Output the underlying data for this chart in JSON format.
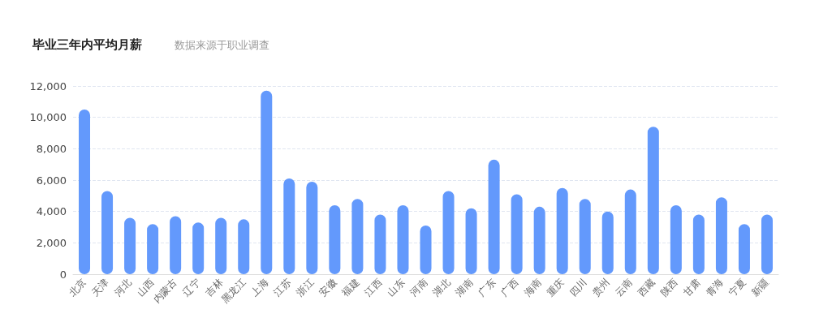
{
  "chart_data": {
    "type": "bar",
    "title": "毕业三年内平均月薪",
    "subtitle": "数据来源于职业调查",
    "categories": [
      "北京",
      "天津",
      "河北",
      "山西",
      "内蒙古",
      "辽宁",
      "吉林",
      "黑龙江",
      "上海",
      "江苏",
      "浙江",
      "安徽",
      "福建",
      "江西",
      "山东",
      "河南",
      "湖北",
      "湖南",
      "广东",
      "广西",
      "海南",
      "重庆",
      "四川",
      "贵州",
      "云南",
      "西藏",
      "陕西",
      "甘肃",
      "青海",
      "宁夏",
      "新疆"
    ],
    "values": [
      10500,
      5300,
      3600,
      3200,
      3700,
      3300,
      3600,
      3500,
      11700,
      6100,
      5900,
      4400,
      4800,
      3800,
      4400,
      3100,
      5300,
      4200,
      7300,
      5100,
      4300,
      5500,
      4800,
      4000,
      5400,
      9400,
      4400,
      3800,
      4900,
      3200,
      3800
    ],
    "color": "#6399fc",
    "ylim": [
      0,
      12000
    ],
    "yticks": [
      0,
      {
        "value": 2000,
        "label": "2,000"
      },
      {
        "value": 4000,
        "label": "4,000"
      },
      {
        "value": 6000,
        "label": "6,000"
      },
      {
        "value": 8000,
        "label": "8,000"
      },
      {
        "value": 10000,
        "label": "10,000"
      },
      {
        "value": 12000,
        "label": "12,000"
      }
    ],
    "grid": "y"
  }
}
